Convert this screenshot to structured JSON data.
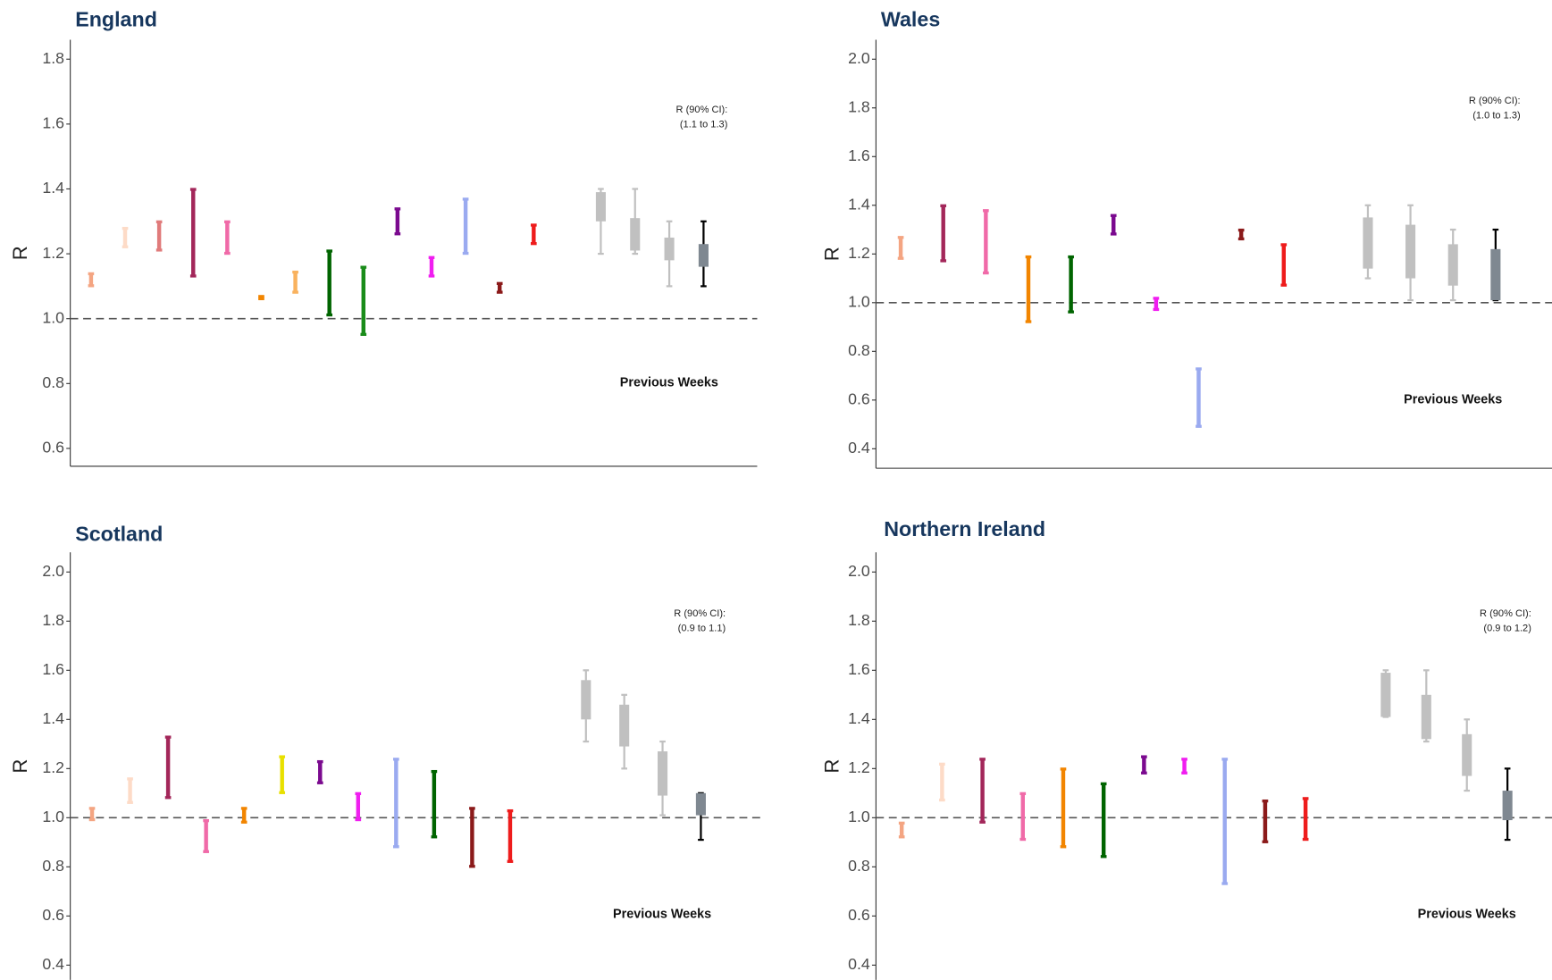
{
  "chart_data": [
    {
      "type": "interval",
      "title": "England",
      "ylabel": "R",
      "ylim": [
        0.545,
        1.86
      ],
      "yticks": [
        0.6,
        0.8,
        {
          "value": 1,
          "label": "1.0"
        },
        1.2,
        1.4,
        1.6,
        1.8
      ],
      "reference_line": 1,
      "ci_label": "R (90% CI):",
      "ci_range": "(1.1 to 1.3)",
      "previous_label": "Previous Weeks",
      "intervals": [
        {
          "color": "#f4a582",
          "low": 1.1,
          "high": 1.14
        },
        {
          "color": "#fddbc7",
          "low": 1.22,
          "high": 1.28
        },
        {
          "color": "#e07b7b",
          "low": 1.21,
          "high": 1.3
        },
        {
          "color": "#a3275a",
          "low": 1.13,
          "high": 1.4
        },
        {
          "color": "#f06aa8",
          "low": 1.2,
          "high": 1.3
        },
        {
          "color": "#f28500",
          "low": 1.06,
          "high": 1.07
        },
        {
          "color": "#f9b25e",
          "low": 1.08,
          "high": 1.145
        },
        {
          "color": "#006400",
          "low": 1.01,
          "high": 1.21
        },
        {
          "color": "#1a8c1a",
          "low": 0.95,
          "high": 1.16
        },
        {
          "color": "#7b0a8f",
          "low": 1.26,
          "high": 1.34
        },
        {
          "color": "#f01ef0",
          "low": 1.13,
          "high": 1.19
        },
        {
          "color": "#9aaaf0",
          "low": 1.2,
          "high": 1.37
        },
        {
          "color": "#8b1a1a",
          "low": 1.08,
          "high": 1.11
        },
        {
          "color": "#ee1c1c",
          "low": 1.23,
          "high": 1.29
        }
      ],
      "previous": [
        {
          "whisker": [
            1.2,
            1.4
          ],
          "box": [
            1.3,
            1.39
          ],
          "color": "#c0c0c0",
          "whisker_color": "#c0c0c0"
        },
        {
          "whisker": [
            1.2,
            1.4
          ],
          "box": [
            1.21,
            1.31
          ],
          "color": "#c0c0c0",
          "whisker_color": "#c0c0c0"
        },
        {
          "whisker": [
            1.1,
            1.3
          ],
          "box": [
            1.18,
            1.25
          ],
          "color": "#c0c0c0",
          "whisker_color": "#c0c0c0"
        },
        {
          "whisker": [
            1.1,
            1.3
          ],
          "box": [
            1.16,
            1.23
          ],
          "color": "#7f8891",
          "whisker_color": "#000000"
        }
      ]
    },
    {
      "type": "interval",
      "title": "Wales",
      "ylabel": "R",
      "ylim": [
        0.32,
        2.08
      ],
      "yticks": [
        0.4,
        0.6,
        0.8,
        {
          "value": 1,
          "label": "1.0"
        },
        1.2,
        1.4,
        1.6,
        1.8,
        {
          "value": 2,
          "label": "2.0"
        }
      ],
      "reference_line": 1,
      "ci_label": "R (90% CI):",
      "ci_range": "(1.0 to 1.3)",
      "previous_label": "Previous Weeks",
      "intervals": [
        {
          "color": "#f4a582",
          "low": 1.18,
          "high": 1.27
        },
        {
          "color": "#a3275a",
          "low": 1.17,
          "high": 1.4
        },
        {
          "color": "#f06aa8",
          "low": 1.12,
          "high": 1.38
        },
        {
          "color": "#f28500",
          "low": 0.92,
          "high": 1.19
        },
        {
          "color": "#006400",
          "low": 0.96,
          "high": 1.19
        },
        {
          "color": "#7b0a8f",
          "low": 1.28,
          "high": 1.36
        },
        {
          "color": "#f01ef0",
          "low": 0.97,
          "high": 1.02
        },
        {
          "color": "#9aaaf0",
          "low": 0.49,
          "high": 0.73
        },
        {
          "color": "#8b1a1a",
          "low": 1.26,
          "high": 1.3
        },
        {
          "color": "#ee1c1c",
          "low": 1.07,
          "high": 1.24
        }
      ],
      "previous": [
        {
          "whisker": [
            1.1,
            1.4
          ],
          "box": [
            1.14,
            1.35
          ],
          "color": "#c0c0c0",
          "whisker_color": "#c0c0c0"
        },
        {
          "whisker": [
            1.01,
            1.4
          ],
          "box": [
            1.1,
            1.32
          ],
          "color": "#c0c0c0",
          "whisker_color": "#c0c0c0"
        },
        {
          "whisker": [
            1.01,
            1.3
          ],
          "box": [
            1.07,
            1.24
          ],
          "color": "#c0c0c0",
          "whisker_color": "#c0c0c0"
        },
        {
          "whisker": [
            1.01,
            1.3
          ],
          "box": [
            1.01,
            1.22
          ],
          "color": "#7f8891",
          "whisker_color": "#000000"
        }
      ]
    },
    {
      "type": "interval",
      "title": "Scotland",
      "ylabel": "R",
      "ylim": [
        0.34,
        2.08
      ],
      "yticks": [
        0.4,
        0.6,
        0.8,
        {
          "value": 1,
          "label": "1.0"
        },
        1.2,
        1.4,
        1.6,
        1.8,
        {
          "value": 2,
          "label": "2.0"
        }
      ],
      "reference_line": 1,
      "ci_label": "R (90% CI):",
      "ci_range": "(0.9 to 1.1)",
      "previous_label": "Previous Weeks",
      "intervals": [
        {
          "color": "#f4a582",
          "low": 0.99,
          "high": 1.04
        },
        {
          "color": "#fddbc7",
          "low": 1.06,
          "high": 1.16
        },
        {
          "color": "#a3275a",
          "low": 1.08,
          "high": 1.33
        },
        {
          "color": "#f06aa8",
          "low": 0.86,
          "high": 0.99
        },
        {
          "color": "#f28500",
          "low": 0.98,
          "high": 1.04
        },
        {
          "color": "#e8e000",
          "low": 1.1,
          "high": 1.25
        },
        {
          "color": "#7b0a8f",
          "low": 1.14,
          "high": 1.23
        },
        {
          "color": "#f01ef0",
          "low": 0.99,
          "high": 1.1
        },
        {
          "color": "#9aaaf0",
          "low": 0.88,
          "high": 1.24
        },
        {
          "color": "#006400",
          "low": 0.92,
          "high": 1.19
        },
        {
          "color": "#8b1a1a",
          "low": 0.8,
          "high": 1.04
        },
        {
          "color": "#ee1c1c",
          "low": 0.82,
          "high": 1.03
        }
      ],
      "previous": [
        {
          "whisker": [
            1.31,
            1.6
          ],
          "box": [
            1.4,
            1.56
          ],
          "color": "#c0c0c0",
          "whisker_color": "#c0c0c0"
        },
        {
          "whisker": [
            1.2,
            1.5
          ],
          "box": [
            1.29,
            1.46
          ],
          "color": "#c0c0c0",
          "whisker_color": "#c0c0c0"
        },
        {
          "whisker": [
            1.01,
            1.31
          ],
          "box": [
            1.09,
            1.27
          ],
          "color": "#c0c0c0",
          "whisker_color": "#c0c0c0"
        },
        {
          "whisker": [
            0.91,
            1.1
          ],
          "box": [
            1.01,
            1.1
          ],
          "color": "#7f8891",
          "whisker_color": "#000000"
        }
      ]
    },
    {
      "type": "interval",
      "title": "Northern Ireland",
      "ylabel": "R",
      "ylim": [
        0.34,
        2.08
      ],
      "yticks": [
        0.4,
        0.6,
        0.8,
        {
          "value": 1,
          "label": "1.0"
        },
        1.2,
        1.4,
        1.6,
        1.8,
        {
          "value": 2,
          "label": "2.0"
        }
      ],
      "reference_line": 1,
      "ci_label": "R (90% CI):",
      "ci_range": "(0.9 to 1.2)",
      "previous_label": "Previous Weeks",
      "intervals": [
        {
          "color": "#f4a582",
          "low": 0.92,
          "high": 0.98
        },
        {
          "color": "#fddbc7",
          "low": 1.07,
          "high": 1.22
        },
        {
          "color": "#a3275a",
          "low": 0.98,
          "high": 1.24
        },
        {
          "color": "#f06aa8",
          "low": 0.91,
          "high": 1.1
        },
        {
          "color": "#f28500",
          "low": 0.88,
          "high": 1.2
        },
        {
          "color": "#006400",
          "low": 0.84,
          "high": 1.14
        },
        {
          "color": "#7b0a8f",
          "low": 1.18,
          "high": 1.25
        },
        {
          "color": "#f01ef0",
          "low": 1.18,
          "high": 1.24
        },
        {
          "color": "#9aaaf0",
          "low": 0.73,
          "high": 1.24
        },
        {
          "color": "#8b1a1a",
          "low": 0.9,
          "high": 1.07
        },
        {
          "color": "#ee1c1c",
          "low": 0.91,
          "high": 1.08
        }
      ],
      "previous": [
        {
          "whisker": [
            1.41,
            1.6
          ],
          "box": [
            1.41,
            1.59
          ],
          "color": "#c0c0c0",
          "whisker_color": "#c0c0c0"
        },
        {
          "whisker": [
            1.31,
            1.6
          ],
          "box": [
            1.32,
            1.5
          ],
          "color": "#c0c0c0",
          "whisker_color": "#c0c0c0"
        },
        {
          "whisker": [
            1.11,
            1.4
          ],
          "box": [
            1.17,
            1.34
          ],
          "color": "#c0c0c0",
          "whisker_color": "#c0c0c0"
        },
        {
          "whisker": [
            0.91,
            1.2
          ],
          "box": [
            0.99,
            1.11
          ],
          "color": "#7f8891",
          "whisker_color": "#000000"
        }
      ]
    }
  ]
}
